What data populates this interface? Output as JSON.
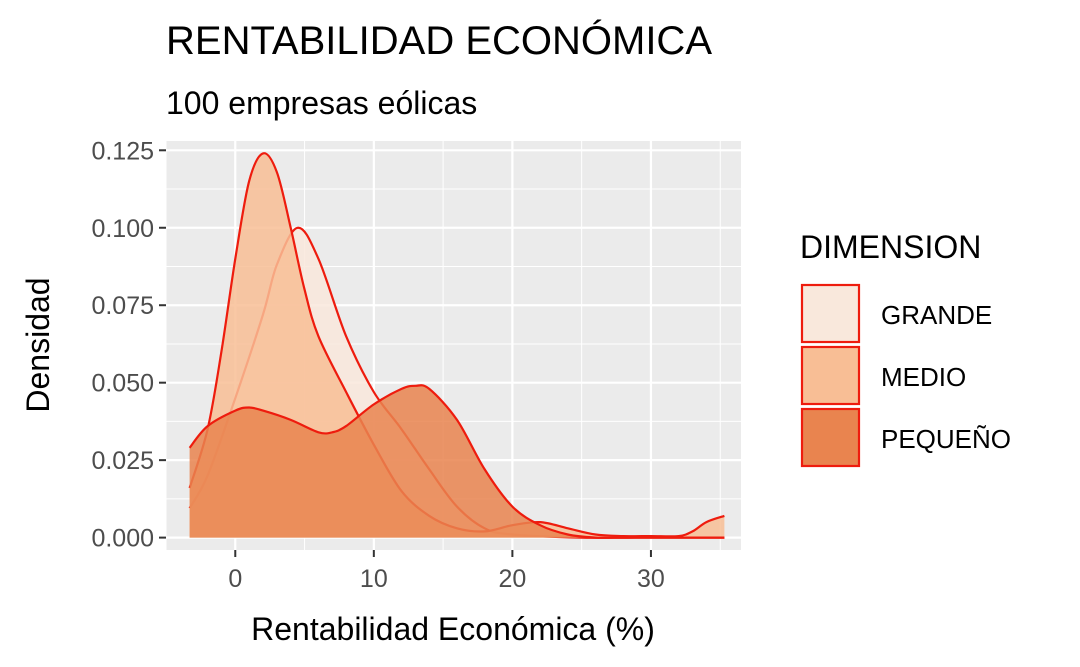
{
  "chart_data": {
    "type": "area",
    "subtype": "density",
    "title": "RENTABILIDAD ECONÓMICA",
    "subtitle": "100 empresas eólicas",
    "xlabel": "Rentabilidad Económica (%)",
    "ylabel": "Densidad",
    "xlim": [
      -5,
      36.5
    ],
    "ylim": [
      -0.004,
      0.128
    ],
    "x_ticks": [
      0,
      10,
      20,
      30
    ],
    "x_tick_labels": [
      "0",
      "10",
      "20",
      "30"
    ],
    "y_ticks": [
      0.0,
      0.025,
      0.05,
      0.075,
      0.1,
      0.125
    ],
    "y_tick_labels": [
      "0.000",
      "0.025",
      "0.050",
      "0.075",
      "0.100",
      "0.125"
    ],
    "grid": true,
    "legend": {
      "title": "DIMENSION",
      "position": "right"
    },
    "outline_color": "#ee1c0e",
    "series": [
      {
        "name": "GRANDE",
        "fill": "#f9e8dc",
        "x": [
          -3.3,
          -2,
          0,
          2,
          3,
          4.5,
          6,
          8,
          10,
          12,
          14,
          16,
          18,
          20,
          25,
          30,
          35.3
        ],
        "y": [
          0.0095,
          0.02,
          0.045,
          0.072,
          0.088,
          0.1,
          0.09,
          0.065,
          0.047,
          0.035,
          0.022,
          0.01,
          0.003,
          0.001,
          0.0,
          0.0,
          0.0
        ]
      },
      {
        "name": "MEDIO",
        "fill": "#f8be95",
        "x": [
          -3.3,
          -2,
          -1,
          0,
          1,
          2,
          3,
          4,
          5,
          6,
          8,
          10,
          12,
          14,
          16,
          18,
          20,
          22,
          24,
          26,
          28,
          30,
          32,
          33,
          34,
          35.3
        ],
        "y": [
          0.016,
          0.035,
          0.06,
          0.09,
          0.115,
          0.124,
          0.118,
          0.1,
          0.08,
          0.065,
          0.047,
          0.03,
          0.015,
          0.007,
          0.003,
          0.002,
          0.004,
          0.005,
          0.003,
          0.001,
          0.0005,
          0.0005,
          0.0005,
          0.002,
          0.005,
          0.007
        ]
      },
      {
        "name": "PEQUEÑO",
        "fill": "#e9844f",
        "x": [
          -3.3,
          -2,
          0,
          1,
          2,
          4,
          6,
          7,
          8,
          10,
          12,
          13,
          14,
          16,
          18,
          20,
          22,
          24,
          26,
          28,
          30,
          32,
          35.3
        ],
        "y": [
          0.029,
          0.036,
          0.041,
          0.042,
          0.041,
          0.038,
          0.034,
          0.034,
          0.036,
          0.043,
          0.048,
          0.049,
          0.048,
          0.038,
          0.022,
          0.01,
          0.004,
          0.001,
          0.0,
          0.0,
          0.0,
          0.0,
          0.0
        ]
      }
    ]
  }
}
